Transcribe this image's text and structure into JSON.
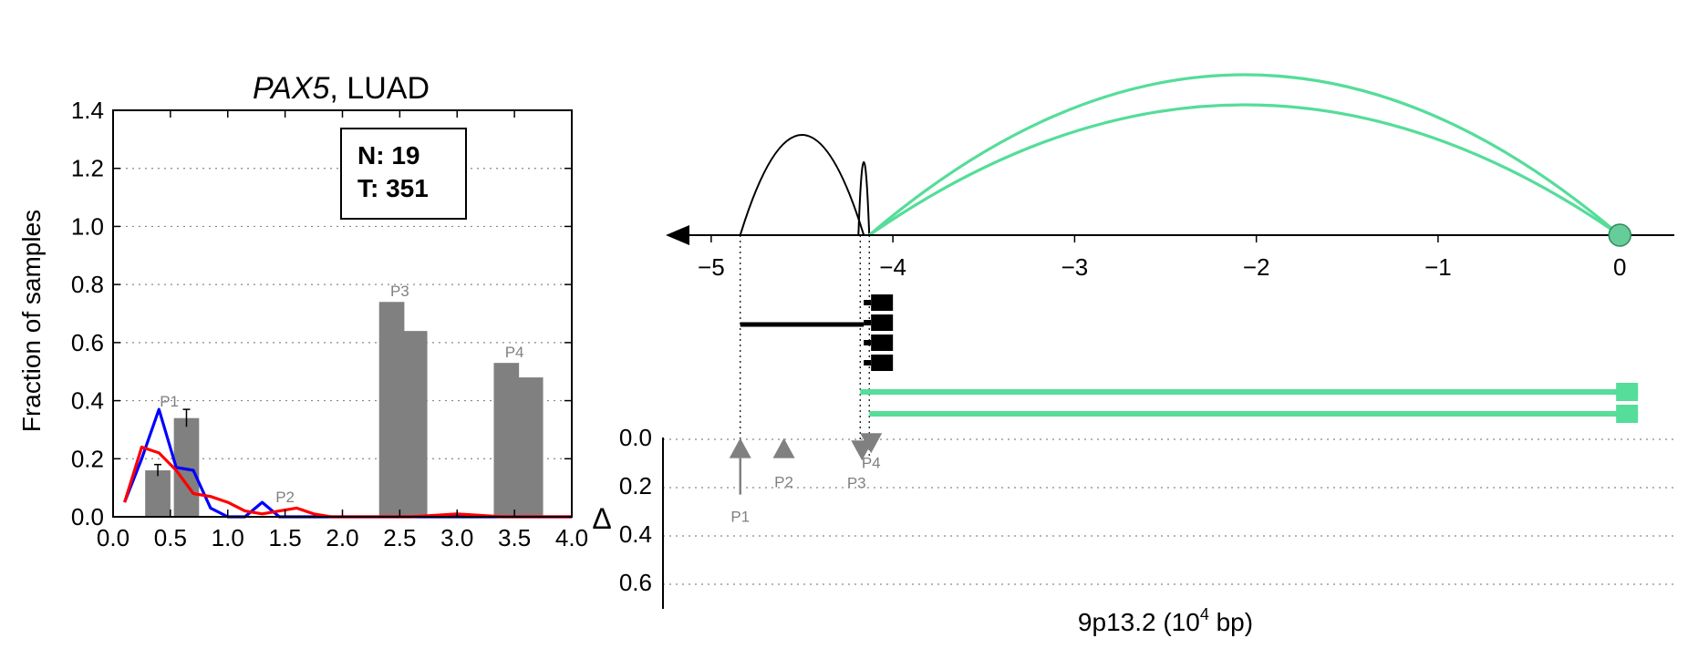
{
  "chart_data": [
    {
      "type": "bar",
      "title_gene": "PAX5",
      "title_rest": ", LUAD",
      "ylabel": "Fraction of samples",
      "xlim": [
        0,
        4.0
      ],
      "ylim": [
        0,
        1.4
      ],
      "xticks": [
        "0.0",
        "0.5",
        "1.0",
        "1.5",
        "2.0",
        "2.5",
        "3.0",
        "3.5",
        "4.0"
      ],
      "yticks": [
        "0.0",
        "0.2",
        "0.4",
        "0.6",
        "0.8",
        "1.0",
        "1.2",
        "1.4"
      ],
      "grid": true,
      "counts_box": {
        "n": "N: 19",
        "t": "T: 351"
      },
      "bars": [
        {
          "group": "P1",
          "x": 0.39,
          "value": 0.16,
          "err": 0.02
        },
        {
          "group": "P1",
          "x": 0.64,
          "value": 0.34,
          "err": 0.03
        },
        {
          "group": "P3",
          "x": 2.43,
          "value": 0.74,
          "err": 0
        },
        {
          "group": "P3",
          "x": 2.63,
          "value": 0.64,
          "err": 0
        },
        {
          "group": "P4",
          "x": 3.43,
          "value": 0.53,
          "err": 0
        },
        {
          "group": "P4",
          "x": 3.64,
          "value": 0.48,
          "err": 0
        }
      ],
      "bar_labels": [
        {
          "text": "P1",
          "x": 0.49,
          "y": 0.38
        },
        {
          "text": "P2",
          "x": 1.5,
          "y": 0.05
        },
        {
          "text": "P3",
          "x": 2.5,
          "y": 0.76
        },
        {
          "text": "P4",
          "x": 3.5,
          "y": 0.55
        }
      ],
      "series": [
        {
          "color": "#0000ff",
          "x": [
            0.1,
            0.25,
            0.4,
            0.55,
            0.7,
            0.85,
            1.0,
            1.15,
            1.3,
            1.45,
            1.6,
            1.75,
            2.0,
            3.0,
            4.0
          ],
          "values": [
            0.05,
            0.2,
            0.37,
            0.17,
            0.16,
            0.03,
            0.0,
            0.0,
            0.05,
            0.0,
            0.0,
            0.0,
            0.0,
            0.0,
            0.0
          ]
        },
        {
          "color": "#ff0000",
          "x": [
            0.1,
            0.25,
            0.4,
            0.55,
            0.7,
            0.85,
            1.0,
            1.15,
            1.3,
            1.45,
            1.6,
            1.75,
            1.9,
            2.2,
            2.6,
            3.0,
            3.4,
            3.8,
            4.0
          ],
          "values": [
            0.05,
            0.24,
            0.22,
            0.16,
            0.08,
            0.07,
            0.05,
            0.02,
            0.01,
            0.02,
            0.03,
            0.01,
            0.0,
            0.0,
            0.0,
            0.01,
            0.0,
            0.0,
            0.0
          ]
        }
      ]
    },
    {
      "type": "diagram",
      "xlim": [
        -5.2,
        0.3
      ],
      "xticks": [
        "−5",
        "−4",
        "−3",
        "−2",
        "−1",
        "0"
      ],
      "xlabel_main": "9p13.2 (10",
      "xlabel_sup": "4",
      "xlabel_end": " bp)",
      "origin_x": 0,
      "black_arcs": [
        {
          "start": -4.84,
          "end": -4.16,
          "height": 1.0
        },
        {
          "start": -4.19,
          "end": -4.13,
          "height": 0.73
        }
      ],
      "green_arcs": [
        {
          "start": -4.13,
          "end": 0,
          "height": 1.6
        },
        {
          "start": -4.13,
          "end": 0,
          "height": 1.3
        }
      ],
      "gene_model": {
        "line_start": -4.84,
        "line_end": -4.16,
        "exons_x": -4.06,
        "exon_rows": [
          0,
          1,
          2,
          3
        ]
      },
      "green_tracks": [
        {
          "start": -4.18,
          "end": 0.1
        },
        {
          "start": -4.13,
          "end": 0.1
        }
      ],
      "delta_label": "Δ",
      "delta_ticks": [
        "0.0",
        "0.2",
        "0.4",
        "0.6"
      ],
      "delta_markers": [
        {
          "label": "P1",
          "x": -4.84,
          "delta": 0.04,
          "direction": "up"
        },
        {
          "label": "P2",
          "x": -4.6,
          "delta": 0.04,
          "direction": "up"
        },
        {
          "label": "P3",
          "x": -4.17,
          "delta": 0.05,
          "direction": "down"
        },
        {
          "label": "P4",
          "x": -4.12,
          "delta": 0.02,
          "direction": "down"
        }
      ]
    }
  ]
}
